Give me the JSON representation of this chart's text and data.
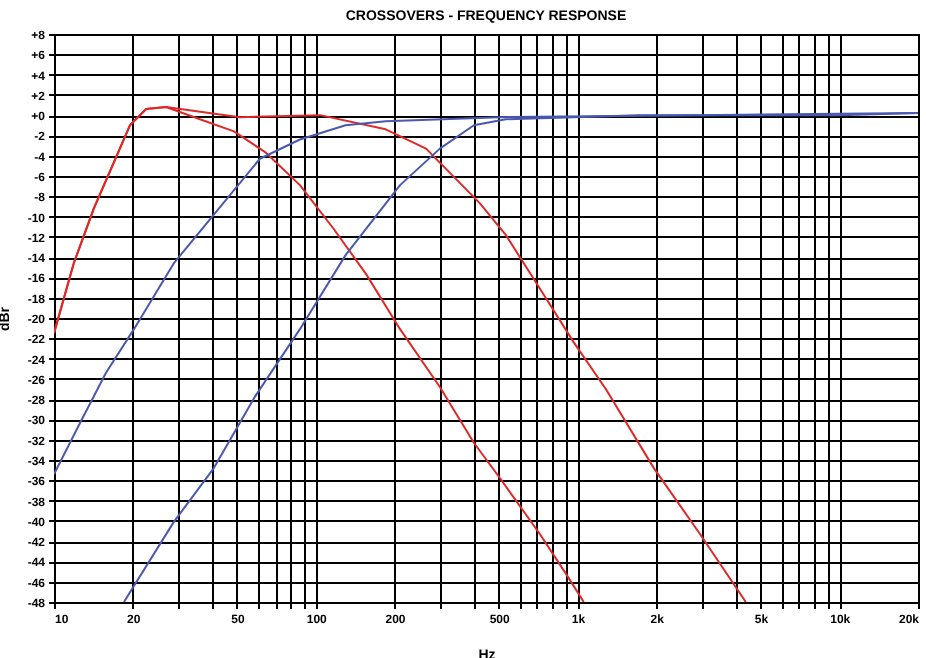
{
  "chart_data": {
    "type": "line",
    "title": "CROSSOVERS - FREQUENCY RESPONSE",
    "xlabel": "Hz",
    "ylabel": "dBr",
    "log": "x",
    "grid": true,
    "xlim": [
      10,
      20000
    ],
    "ylim": [
      -48,
      8
    ],
    "xticks": [
      10,
      20,
      {
        "value": 30,
        "label": null
      },
      {
        "value": 40,
        "label": null
      },
      50,
      {
        "value": 60,
        "label": null
      },
      {
        "value": 70,
        "label": null
      },
      {
        "value": 80,
        "label": null
      },
      {
        "value": 90,
        "label": null
      },
      100,
      200,
      {
        "value": 300,
        "label": null
      },
      {
        "value": 400,
        "label": null
      },
      500,
      {
        "value": 600,
        "label": null
      },
      {
        "value": 700,
        "label": null
      },
      {
        "value": 800,
        "label": null
      },
      {
        "value": 900,
        "label": null
      },
      {
        "value": 1000,
        "label": "1k"
      },
      {
        "value": 2000,
        "label": "2k"
      },
      {
        "value": 3000,
        "label": null
      },
      {
        "value": 4000,
        "label": null
      },
      {
        "value": 5000,
        "label": "5k"
      },
      {
        "value": 6000,
        "label": null
      },
      {
        "value": 7000,
        "label": null
      },
      {
        "value": 8000,
        "label": null
      },
      {
        "value": 9000,
        "label": null
      },
      {
        "value": 10000,
        "label": "10k"
      },
      {
        "value": 20000,
        "label": "20k"
      }
    ],
    "yticks": [
      {
        "value": 8,
        "label": "+8"
      },
      {
        "value": 6,
        "label": "+6"
      },
      {
        "value": 4,
        "label": "+4"
      },
      {
        "value": 2,
        "label": "+2"
      },
      {
        "value": 0,
        "label": "+0"
      },
      -2,
      -4,
      -6,
      -8,
      -10,
      -12,
      -14,
      -16,
      -18,
      -20,
      -22,
      -24,
      -26,
      -28,
      -30,
      -32,
      -34,
      -36,
      -38,
      -40,
      -42,
      -44,
      -46,
      -48
    ],
    "series": [
      {
        "color": "#e02828",
        "x": [
          10,
          11.9,
          14.2,
          16.9,
          19.5,
          22.5,
          26.8,
          36.1,
          48.7,
          64.5,
          87,
          117,
          156,
          210,
          298,
          402,
          506,
          718,
          903,
          1057
        ],
        "values": [
          -21.5,
          -14.6,
          -9.2,
          -4.7,
          -1.0,
          0.6,
          0.8,
          -0.4,
          -1.6,
          -3.7,
          -6.9,
          -11.2,
          -15.7,
          -21.1,
          -26.8,
          -32.3,
          -35.8,
          -41.3,
          -45.2,
          -48.0
        ]
      },
      {
        "color": "#e02828",
        "x": [
          10,
          11.9,
          14.2,
          16.9,
          19.5,
          22.5,
          26.8,
          51.3,
          104,
          185,
          264,
          424,
          532,
          718,
          968,
          1283,
          1958,
          2938,
          4397
        ],
        "values": [
          -21.5,
          -14.6,
          -9.2,
          -4.7,
          -1.0,
          0.6,
          0.8,
          -0.2,
          0,
          -1.4,
          -3.3,
          -8.7,
          -11.8,
          -17.1,
          -22.4,
          -27.0,
          -34.8,
          -41.3,
          -48.0
        ]
      },
      {
        "color": "#4a58b0",
        "x": [
          10,
          12.6,
          15.8,
          20.2,
          28.7,
          40.8,
          61.2,
          87,
          130,
          185,
          506,
          2938,
          20000
        ],
        "values": [
          -35.4,
          -30.3,
          -25.4,
          -21.1,
          -14.6,
          -9.8,
          -4.3,
          -2.4,
          -1.0,
          -0.6,
          -0.2,
          0,
          0.2
        ]
      },
      {
        "color": "#4a58b0",
        "x": [
          18.5,
          28.7,
          40.8,
          58.1,
          87,
          130,
          210,
          298,
          402,
          532,
          1730,
          10000,
          20000
        ],
        "values": [
          -48.0,
          -40.1,
          -34.8,
          -27.9,
          -21.1,
          -13.8,
          -6.9,
          -3.3,
          -1.0,
          -0.4,
          0,
          0,
          0.2
        ]
      }
    ]
  }
}
